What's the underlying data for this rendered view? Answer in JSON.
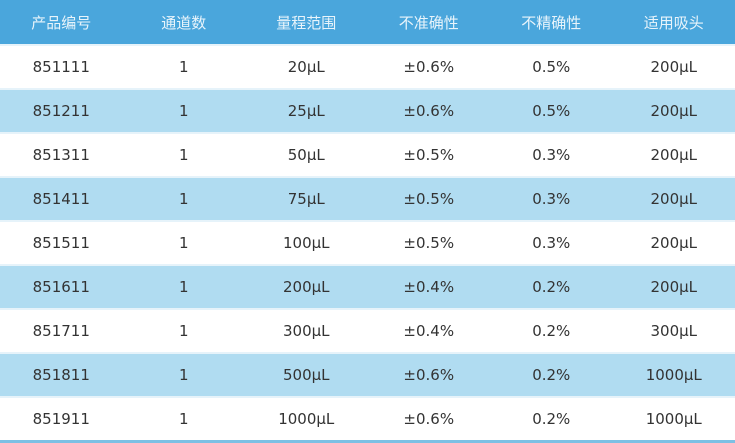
{
  "table": {
    "headers": [
      "产品编号",
      "通道数",
      "量程范围",
      "不准确性",
      "不精确性",
      "适用吸头"
    ],
    "rows": [
      [
        "851111",
        "1",
        "20µL",
        "±0.6%",
        "0.5%",
        "200µL"
      ],
      [
        "851211",
        "1",
        "25µL",
        "±0.6%",
        "0.5%",
        "200µL"
      ],
      [
        "851311",
        "1",
        "50µL",
        "±0.5%",
        "0.3%",
        "200µL"
      ],
      [
        "851411",
        "1",
        "75µL",
        "±0.5%",
        "0.3%",
        "200µL"
      ],
      [
        "851511",
        "1",
        "100µL",
        "±0.5%",
        "0.3%",
        "200µL"
      ],
      [
        "851611",
        "1",
        "200µL",
        "±0.4%",
        "0.2%",
        "200µL"
      ],
      [
        "851711",
        "1",
        "300µL",
        "±0.4%",
        "0.2%",
        "300µL"
      ],
      [
        "851811",
        "1",
        "500µL",
        "±0.6%",
        "0.2%",
        "1000µL"
      ],
      [
        "851911",
        "1",
        "1000µL",
        "±0.6%",
        "0.2%",
        "1000µL"
      ]
    ]
  },
  "colors": {
    "header": "#4aa6dc",
    "alt_row": "#b0dcf1"
  }
}
